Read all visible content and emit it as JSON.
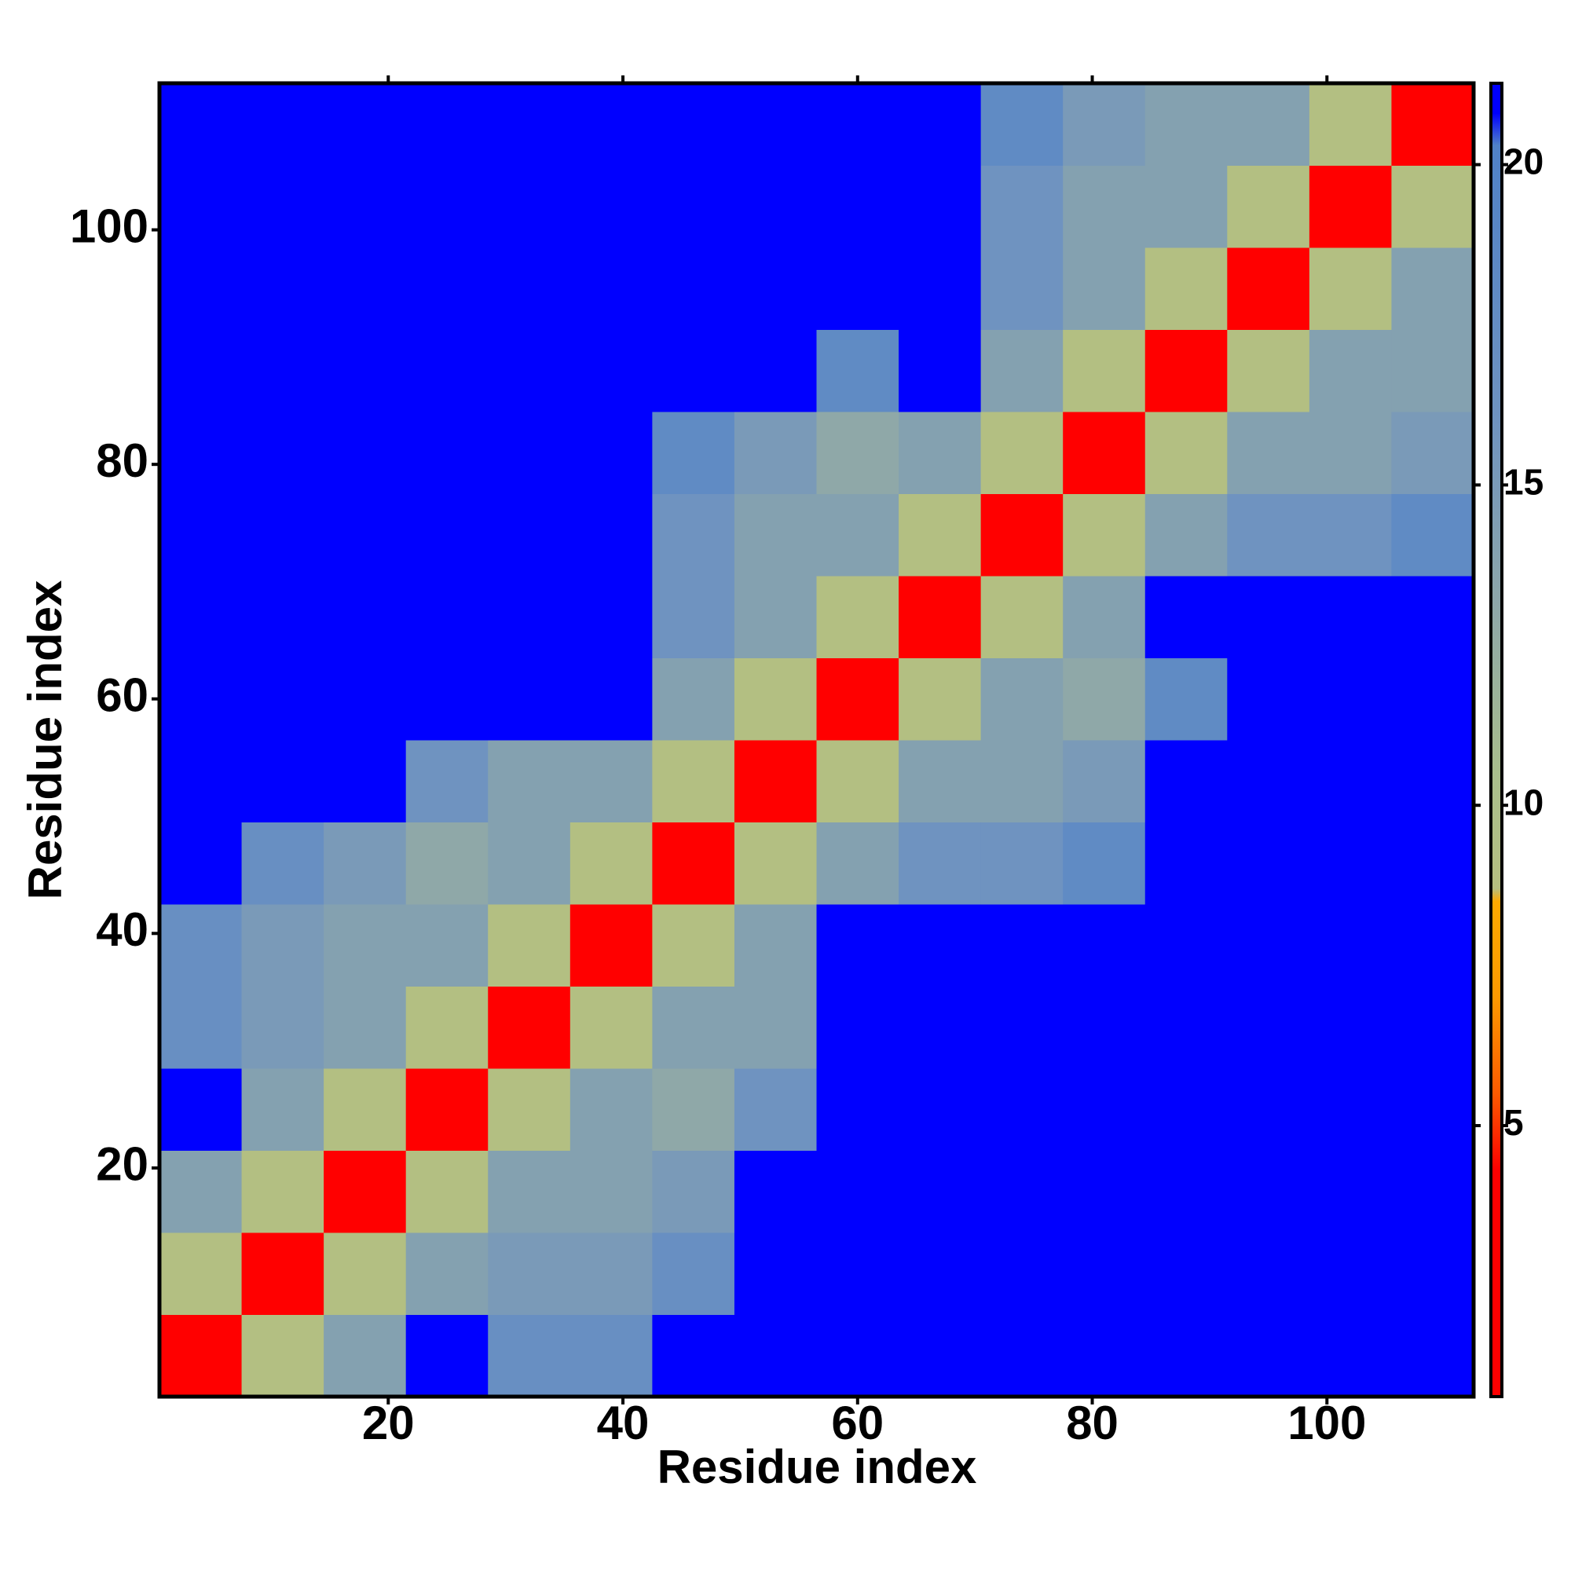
{
  "chart_data": {
    "type": "heatmap",
    "xlabel": "Residue index",
    "ylabel": "Residue index",
    "x": [
      4,
      11,
      18,
      25,
      32,
      39,
      46,
      53,
      60,
      67,
      74,
      81,
      88,
      95,
      102,
      109
    ],
    "y": [
      4,
      11,
      18,
      25,
      32,
      39,
      46,
      53,
      60,
      67,
      74,
      81,
      88,
      95,
      102,
      109
    ],
    "z": [
      [
        4,
        9,
        14,
        21,
        17,
        17,
        21,
        21,
        21,
        21,
        21,
        21,
        21,
        21,
        21,
        21
      ],
      [
        9,
        4,
        9,
        14,
        15,
        15,
        17,
        21,
        21,
        21,
        21,
        21,
        21,
        21,
        21,
        21
      ],
      [
        14,
        9,
        4,
        9,
        14,
        14,
        15,
        21,
        21,
        21,
        21,
        21,
        21,
        21,
        21,
        21
      ],
      [
        21,
        14,
        9,
        4,
        9,
        14,
        13,
        16,
        21,
        21,
        21,
        21,
        21,
        21,
        21,
        21
      ],
      [
        17,
        15,
        14,
        9,
        4,
        9,
        14,
        14,
        21,
        21,
        21,
        21,
        21,
        21,
        21,
        21
      ],
      [
        17,
        15,
        14,
        14,
        9,
        4,
        9,
        14,
        21,
        21,
        21,
        21,
        21,
        21,
        21,
        21
      ],
      [
        21,
        17,
        15,
        13,
        14,
        9,
        4,
        9,
        14,
        16,
        16,
        18,
        21,
        21,
        21,
        21
      ],
      [
        21,
        21,
        21,
        16,
        14,
        14,
        9,
        4,
        9,
        14,
        14,
        15,
        21,
        21,
        21,
        21
      ],
      [
        21,
        21,
        21,
        21,
        21,
        21,
        14,
        9,
        4,
        9,
        14,
        13,
        18,
        21,
        21,
        21
      ],
      [
        21,
        21,
        21,
        21,
        21,
        21,
        16,
        14,
        9,
        4,
        9,
        14,
        21,
        21,
        21,
        21
      ],
      [
        21,
        21,
        21,
        21,
        21,
        21,
        16,
        14,
        14,
        9,
        4,
        9,
        14,
        16,
        16,
        18
      ],
      [
        21,
        21,
        21,
        21,
        21,
        21,
        18,
        15,
        13,
        14,
        9,
        4,
        9,
        14,
        14,
        15
      ],
      [
        21,
        21,
        21,
        21,
        21,
        21,
        21,
        21,
        18,
        21,
        14,
        9,
        4,
        9,
        14,
        14
      ],
      [
        21,
        21,
        21,
        21,
        21,
        21,
        21,
        21,
        21,
        21,
        16,
        14,
        9,
        4,
        9,
        14
      ],
      [
        21,
        21,
        21,
        21,
        21,
        21,
        21,
        21,
        21,
        21,
        16,
        14,
        14,
        9,
        4,
        9
      ],
      [
        21,
        21,
        21,
        21,
        21,
        21,
        21,
        21,
        21,
        21,
        18,
        15,
        14,
        14,
        9,
        4
      ]
    ],
    "xlim": [
      0.5,
      112.5
    ],
    "ylim": [
      0.5,
      112.5
    ],
    "xticks": [
      20,
      40,
      60,
      80,
      100
    ],
    "yticks": [
      20,
      40,
      60,
      80,
      100
    ],
    "zlim": [
      0.77,
      21.27
    ],
    "zticks": [
      5,
      10,
      15,
      20
    ],
    "colorscale": [
      {
        "value": 0.77,
        "color": "#ff0000"
      },
      {
        "value": 4.3,
        "color": "#ff0000"
      },
      {
        "value": 5.5,
        "color": "#ff5a00"
      },
      {
        "value": 7,
        "color": "#ff9900"
      },
      {
        "value": 8.5,
        "color": "#ffaa00"
      },
      {
        "value": 8.7,
        "color": "#b5bf80"
      },
      {
        "value": 10.5,
        "color": "#a9bf8c"
      },
      {
        "value": 13,
        "color": "#8fa8a8"
      },
      {
        "value": 16,
        "color": "#6f93c0"
      },
      {
        "value": 20.3,
        "color": "#4f81c8"
      },
      {
        "value": 20.8,
        "color": "#0000ff"
      },
      {
        "value": 21.27,
        "color": "#0000ff"
      }
    ]
  }
}
